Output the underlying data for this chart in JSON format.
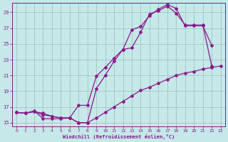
{
  "xlabel": "Windchill (Refroidissement éolien,°C)",
  "bg_color": "#c5e8e8",
  "line_color": "#8b1a8b",
  "grid_color": "#a0c4c4",
  "xlim": [
    -0.5,
    23.5
  ],
  "ylim": [
    14.5,
    30.2
  ],
  "xticks": [
    0,
    1,
    2,
    3,
    4,
    5,
    6,
    7,
    8,
    9,
    10,
    11,
    12,
    13,
    14,
    15,
    16,
    17,
    18,
    19,
    20,
    21,
    22,
    23
  ],
  "yticks": [
    15,
    17,
    19,
    21,
    23,
    25,
    27,
    29
  ],
  "line1_x": [
    0,
    1,
    2,
    3,
    4,
    5,
    6,
    7,
    8,
    9,
    10,
    11,
    12,
    13,
    14,
    15,
    16,
    17,
    18,
    19,
    20,
    21,
    22
  ],
  "line1_y": [
    16.3,
    16.2,
    16.4,
    16.2,
    15.8,
    15.6,
    15.6,
    15.0,
    15.0,
    19.3,
    21.0,
    22.8,
    24.3,
    26.8,
    27.2,
    28.6,
    29.4,
    30.0,
    29.5,
    27.3,
    27.3,
    27.3,
    24.8
  ],
  "line2_x": [
    0,
    1,
    2,
    3,
    4,
    5,
    6,
    7,
    8,
    9,
    10,
    11,
    12,
    13,
    14,
    15,
    16,
    17,
    18,
    19,
    20,
    21,
    22
  ],
  "line2_y": [
    16.3,
    16.2,
    16.4,
    16.0,
    15.8,
    15.6,
    15.6,
    17.2,
    17.2,
    20.9,
    22.0,
    23.2,
    24.3,
    24.5,
    26.5,
    28.8,
    29.2,
    29.8,
    28.9,
    27.4,
    27.4,
    27.4,
    22.2
  ],
  "line3_x": [
    0,
    1,
    2,
    3,
    4,
    5,
    6,
    7,
    8,
    9,
    10,
    11,
    12,
    13,
    14,
    15,
    16,
    17,
    18,
    19,
    20,
    21,
    22,
    23
  ],
  "line3_y": [
    16.3,
    16.2,
    16.5,
    15.5,
    15.5,
    15.5,
    15.6,
    15.0,
    15.0,
    15.6,
    16.3,
    17.0,
    17.7,
    18.4,
    19.1,
    19.5,
    20.0,
    20.5,
    21.0,
    21.3,
    21.5,
    21.8,
    22.0,
    22.2
  ]
}
